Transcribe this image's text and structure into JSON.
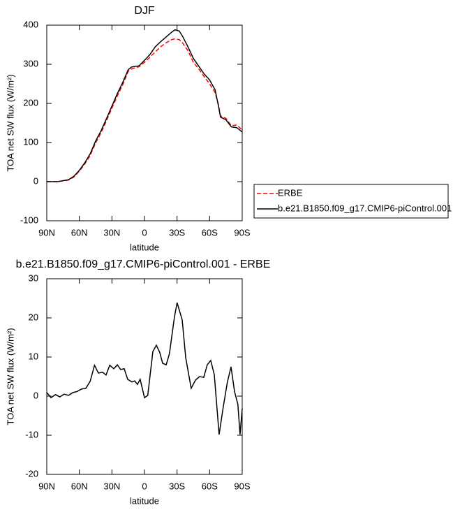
{
  "chart_data": [
    {
      "type": "line",
      "title": "DJF",
      "xlabel": "latitude",
      "ylabel": "TOA net SW flux (W/m²)",
      "legend": "right",
      "xlim": [
        90,
        -90
      ],
      "xticks": [
        {
          "value": 90,
          "label": "90N"
        },
        {
          "value": 60,
          "label": "60N"
        },
        {
          "value": 30,
          "label": "30N"
        },
        0,
        {
          "value": -30,
          "label": "30S"
        },
        {
          "value": -60,
          "label": "60S"
        },
        {
          "value": -90,
          "label": "90S"
        }
      ],
      "ylim": [
        -100,
        400
      ],
      "yticks": [
        -100,
        0,
        100,
        200,
        300,
        400
      ],
      "x": [
        90,
        80,
        70,
        65,
        60,
        55,
        50,
        45,
        40,
        35,
        30,
        25,
        20,
        15,
        12,
        5,
        0,
        -5,
        -10,
        -15,
        -20,
        -25,
        -28,
        -32,
        -35,
        -40,
        -45,
        -50,
        -55,
        -60,
        -65,
        -68,
        -70,
        -75,
        -80,
        -85,
        -90
      ],
      "series": [
        {
          "name": "ERBE",
          "color": "#ff0000",
          "linestyle": "dashed",
          "values": [
            0,
            0,
            4,
            12,
            27,
            45,
            67,
            99,
            125,
            156,
            188,
            219,
            248,
            282,
            288,
            294,
            305,
            318,
            332,
            345,
            355,
            363,
            365,
            363,
            355,
            335,
            305,
            288,
            268,
            250,
            228,
            198,
            168,
            162,
            143,
            145,
            132
          ]
        },
        {
          "name": "b.e21.B1850.f09_g17.CMIP6-piControl.001",
          "color": "#000000",
          "linestyle": "solid",
          "values": [
            0,
            0,
            5,
            14,
            29,
            48,
            71,
            104,
            130,
            161,
            193,
            225,
            254,
            286,
            293,
            296,
            310,
            325,
            345,
            358,
            370,
            382,
            388,
            385,
            372,
            345,
            315,
            295,
            275,
            260,
            235,
            195,
            165,
            158,
            140,
            138,
            127
          ]
        }
      ]
    },
    {
      "type": "line",
      "title": "b.e21.B1850.f09_g17.CMIP6-piControl.001 - ERBE",
      "xlabel": "latitude",
      "ylabel": "TOA net SW flux (W/m²)",
      "xlim": [
        90,
        -90
      ],
      "xticks": [
        {
          "value": 90,
          "label": "90N"
        },
        {
          "value": 60,
          "label": "60N"
        },
        {
          "value": 30,
          "label": "30N"
        },
        0,
        {
          "value": -30,
          "label": "30S"
        },
        {
          "value": -60,
          "label": "60S"
        },
        {
          "value": -90,
          "label": "90S"
        }
      ],
      "ylim": [
        -20,
        30
      ],
      "yticks": [
        -20,
        -10,
        0,
        10,
        20,
        30
      ],
      "x": [
        90,
        86,
        82,
        78,
        74,
        70,
        66,
        62,
        58,
        54,
        50,
        46,
        42.4,
        38.6,
        35.4,
        32,
        28.3,
        25,
        22,
        18.7,
        15.5,
        11.6,
        9,
        6.5,
        4,
        0,
        -3,
        -7.7,
        -10.9,
        -14,
        -16.7,
        -20,
        -23,
        -27.6,
        -30,
        -34.7,
        -38,
        -43,
        -47,
        -50.7,
        -54.6,
        -57.8,
        -61,
        -64.3,
        -68.7,
        -72.6,
        -76.4,
        -79.7,
        -82.9,
        -86,
        -88,
        -90
      ],
      "series": [
        {
          "color": "#000000",
          "linestyle": "solid",
          "values": [
            0.9,
            -0.4,
            0.4,
            -0.2,
            0.5,
            0.2,
            0.9,
            1.2,
            1.8,
            2,
            3.8,
            7.9,
            5.9,
            6.1,
            5.4,
            7.9,
            7,
            8,
            6.8,
            7,
            4.3,
            3.6,
            3.9,
            3,
            4.3,
            -0.4,
            0.2,
            11.4,
            13,
            11.2,
            8.4,
            8,
            10.9,
            20.2,
            23.9,
            19.5,
            9.8,
            2,
            4.1,
            5,
            4.8,
            8,
            9.1,
            5.5,
            -9.8,
            -2.7,
            3.6,
            7.5,
            1.2,
            -2.1,
            -9.8,
            -3.2
          ]
        }
      ]
    }
  ]
}
